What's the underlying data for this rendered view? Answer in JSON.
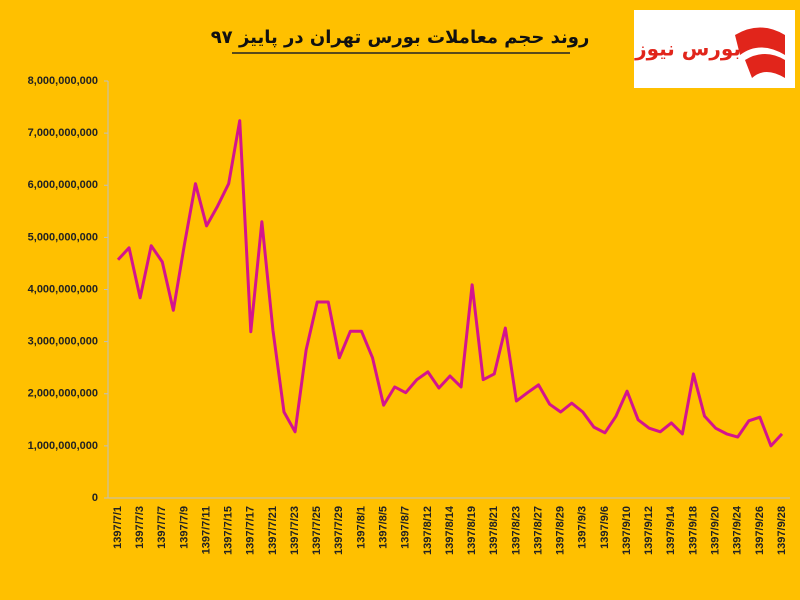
{
  "chart_data": {
    "type": "line",
    "title": "روند حجم معاملات بورس تهران در پاییز ۹۷",
    "logo_text": "بورس نیوز",
    "categories": [
      "1397/7/1",
      null,
      "1397/7/3",
      null,
      "1397/7/7",
      null,
      "1397/7/9",
      null,
      "1397/7/11",
      null,
      "1397/7/15",
      null,
      "1397/7/17",
      null,
      "1397/7/21",
      null,
      "1397/7/23",
      null,
      "1397/7/25",
      null,
      "1397/7/29",
      null,
      "1397/8/1",
      null,
      "1397/8/5",
      null,
      "1397/8/7",
      null,
      "1397/8/12",
      null,
      "1397/8/14",
      null,
      "1397/8/19",
      null,
      "1397/8/21",
      null,
      "1397/8/23",
      null,
      "1397/8/27",
      null,
      "1397/8/29",
      null,
      "1397/9/3",
      null,
      "1397/9/6",
      null,
      "1397/9/10",
      null,
      "1397/9/12",
      null,
      "1397/9/14",
      null,
      "1397/9/18",
      null,
      "1397/9/20",
      null,
      "1397/9/24",
      null,
      "1397/9/26",
      null,
      "1397/9/28"
    ],
    "series": [
      {
        "name": "حجم معاملات",
        "color": "#d4148e",
        "values": [
          4570000000,
          4800000000,
          3840000000,
          4840000000,
          4530000000,
          3600000000,
          4860000000,
          6030000000,
          5220000000,
          5600000000,
          6030000000,
          7240000000,
          3190000000,
          5300000000,
          3220000000,
          1650000000,
          1270000000,
          2840000000,
          3760000000,
          3760000000,
          2690000000,
          3200000000,
          3200000000,
          2690000000,
          1780000000,
          2130000000,
          2020000000,
          2270000000,
          2420000000,
          2110000000,
          2340000000,
          2130000000,
          4090000000,
          2270000000,
          2380000000,
          3260000000,
          1860000000,
          2020000000,
          2170000000,
          1800000000,
          1650000000,
          1820000000,
          1650000000,
          1360000000,
          1250000000,
          1570000000,
          2050000000,
          1500000000,
          1340000000,
          1270000000,
          1440000000,
          1230000000,
          2380000000,
          1570000000,
          1340000000,
          1230000000,
          1170000000,
          1480000000,
          1550000000,
          1000000000,
          1230000000
        ]
      }
    ],
    "ylim": [
      0,
      8000000000
    ],
    "yticks": [
      0,
      {
        "value": 1000000000,
        "label": "1,000,000,000"
      },
      {
        "value": 2000000000,
        "label": "2,000,000,000"
      },
      {
        "value": 3000000000,
        "label": "3,000,000,000"
      },
      {
        "value": 4000000000,
        "label": "4,000,000,000"
      },
      {
        "value": 5000000000,
        "label": "5,000,000,000"
      },
      {
        "value": 6000000000,
        "label": "6,000,000,000"
      },
      {
        "value": 7000000000,
        "label": "7,000,000,000"
      },
      {
        "value": 8000000000,
        "label": "8,000,000,000"
      }
    ],
    "grid": false
  }
}
